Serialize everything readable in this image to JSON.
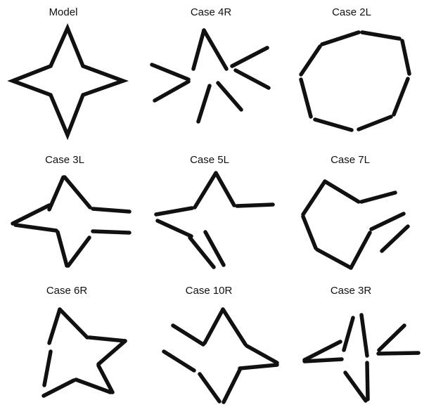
{
  "panels": [
    {
      "label": "Model"
    },
    {
      "label": "Case 4R"
    },
    {
      "label": "Case 2L"
    },
    {
      "label": "Case 3L"
    },
    {
      "label": "Case 5L"
    },
    {
      "label": "Case 7L"
    },
    {
      "label": "Case 6R"
    },
    {
      "label": "Case 10R"
    },
    {
      "label": "Case 3R"
    }
  ],
  "colors": {
    "stroke": "#111111",
    "background": "#ffffff"
  }
}
